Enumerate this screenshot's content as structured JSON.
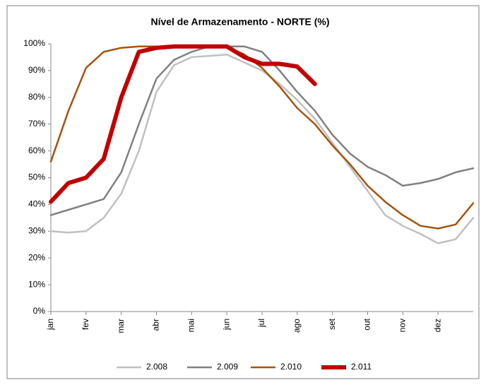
{
  "chart_data": {
    "type": "line",
    "title": "Nível de Armazenamento - NORTE (%)",
    "x": [
      0,
      0.5,
      1,
      1.5,
      2,
      2.5,
      3,
      3.5,
      4,
      4.5,
      5,
      5.5,
      6,
      6.5,
      7,
      7.5,
      8,
      8.5,
      9,
      9.5,
      10,
      10.5,
      11,
      11.5,
      12
    ],
    "xlim": [
      0,
      12
    ],
    "xticks": [
      {
        "value": 0,
        "label": "jan"
      },
      {
        "value": 1,
        "label": "fev"
      },
      {
        "value": 2,
        "label": "mar"
      },
      {
        "value": 3,
        "label": "abr"
      },
      {
        "value": 4,
        "label": "mai"
      },
      {
        "value": 5,
        "label": "jun"
      },
      {
        "value": 6,
        "label": "jul"
      },
      {
        "value": 7,
        "label": "ago"
      },
      {
        "value": 8,
        "label": "set"
      },
      {
        "value": 9,
        "label": "out"
      },
      {
        "value": 10,
        "label": "nov"
      },
      {
        "value": 11,
        "label": "dez"
      }
    ],
    "ylim": [
      0,
      100
    ],
    "yticks": [
      {
        "value": 0,
        "label": "0%"
      },
      {
        "value": 10,
        "label": "10%"
      },
      {
        "value": 20,
        "label": "20%"
      },
      {
        "value": 30,
        "label": "30%"
      },
      {
        "value": 40,
        "label": "40%"
      },
      {
        "value": 50,
        "label": "50%"
      },
      {
        "value": 60,
        "label": "60%"
      },
      {
        "value": 70,
        "label": "70%"
      },
      {
        "value": 80,
        "label": "80%"
      },
      {
        "value": 90,
        "label": "90%"
      },
      {
        "value": 100,
        "label": "100%"
      }
    ],
    "grid": false,
    "legend": "bottom",
    "series": [
      {
        "name": "2.008",
        "color": "#c0c0c0",
        "width": 2.5,
        "values": [
          30,
          29.5,
          30,
          35,
          44,
          60,
          82,
          92,
          95,
          95.5,
          96,
          93,
          90,
          85,
          79,
          72,
          63,
          54,
          45,
          36,
          32,
          29,
          25.5,
          27,
          35
        ]
      },
      {
        "name": "2.009",
        "color": "#808080",
        "width": 2.5,
        "values": [
          36,
          38,
          40,
          42,
          52,
          70,
          87,
          94,
          97,
          99,
          99,
          99,
          97,
          90,
          82,
          75,
          66,
          59,
          54,
          51,
          47,
          48,
          49.5,
          52,
          53.5
        ]
      },
      {
        "name": "2.010",
        "color": "#a5530f",
        "width": 2.5,
        "values": [
          56,
          75,
          91,
          97,
          98.5,
          99,
          99,
          99,
          99,
          99,
          99,
          96,
          91,
          84,
          76,
          70,
          62,
          55,
          47,
          41,
          36,
          32,
          31,
          32.5,
          40.5
        ]
      },
      {
        "name": "2.011",
        "color": "#c00000",
        "width": 6,
        "values": [
          41,
          48,
          50,
          57,
          80,
          97,
          98.5,
          99,
          99,
          99,
          99,
          95,
          92.5,
          92.5,
          91.5,
          85,
          null,
          null,
          null,
          null,
          null,
          null,
          null,
          null,
          null
        ]
      }
    ]
  }
}
